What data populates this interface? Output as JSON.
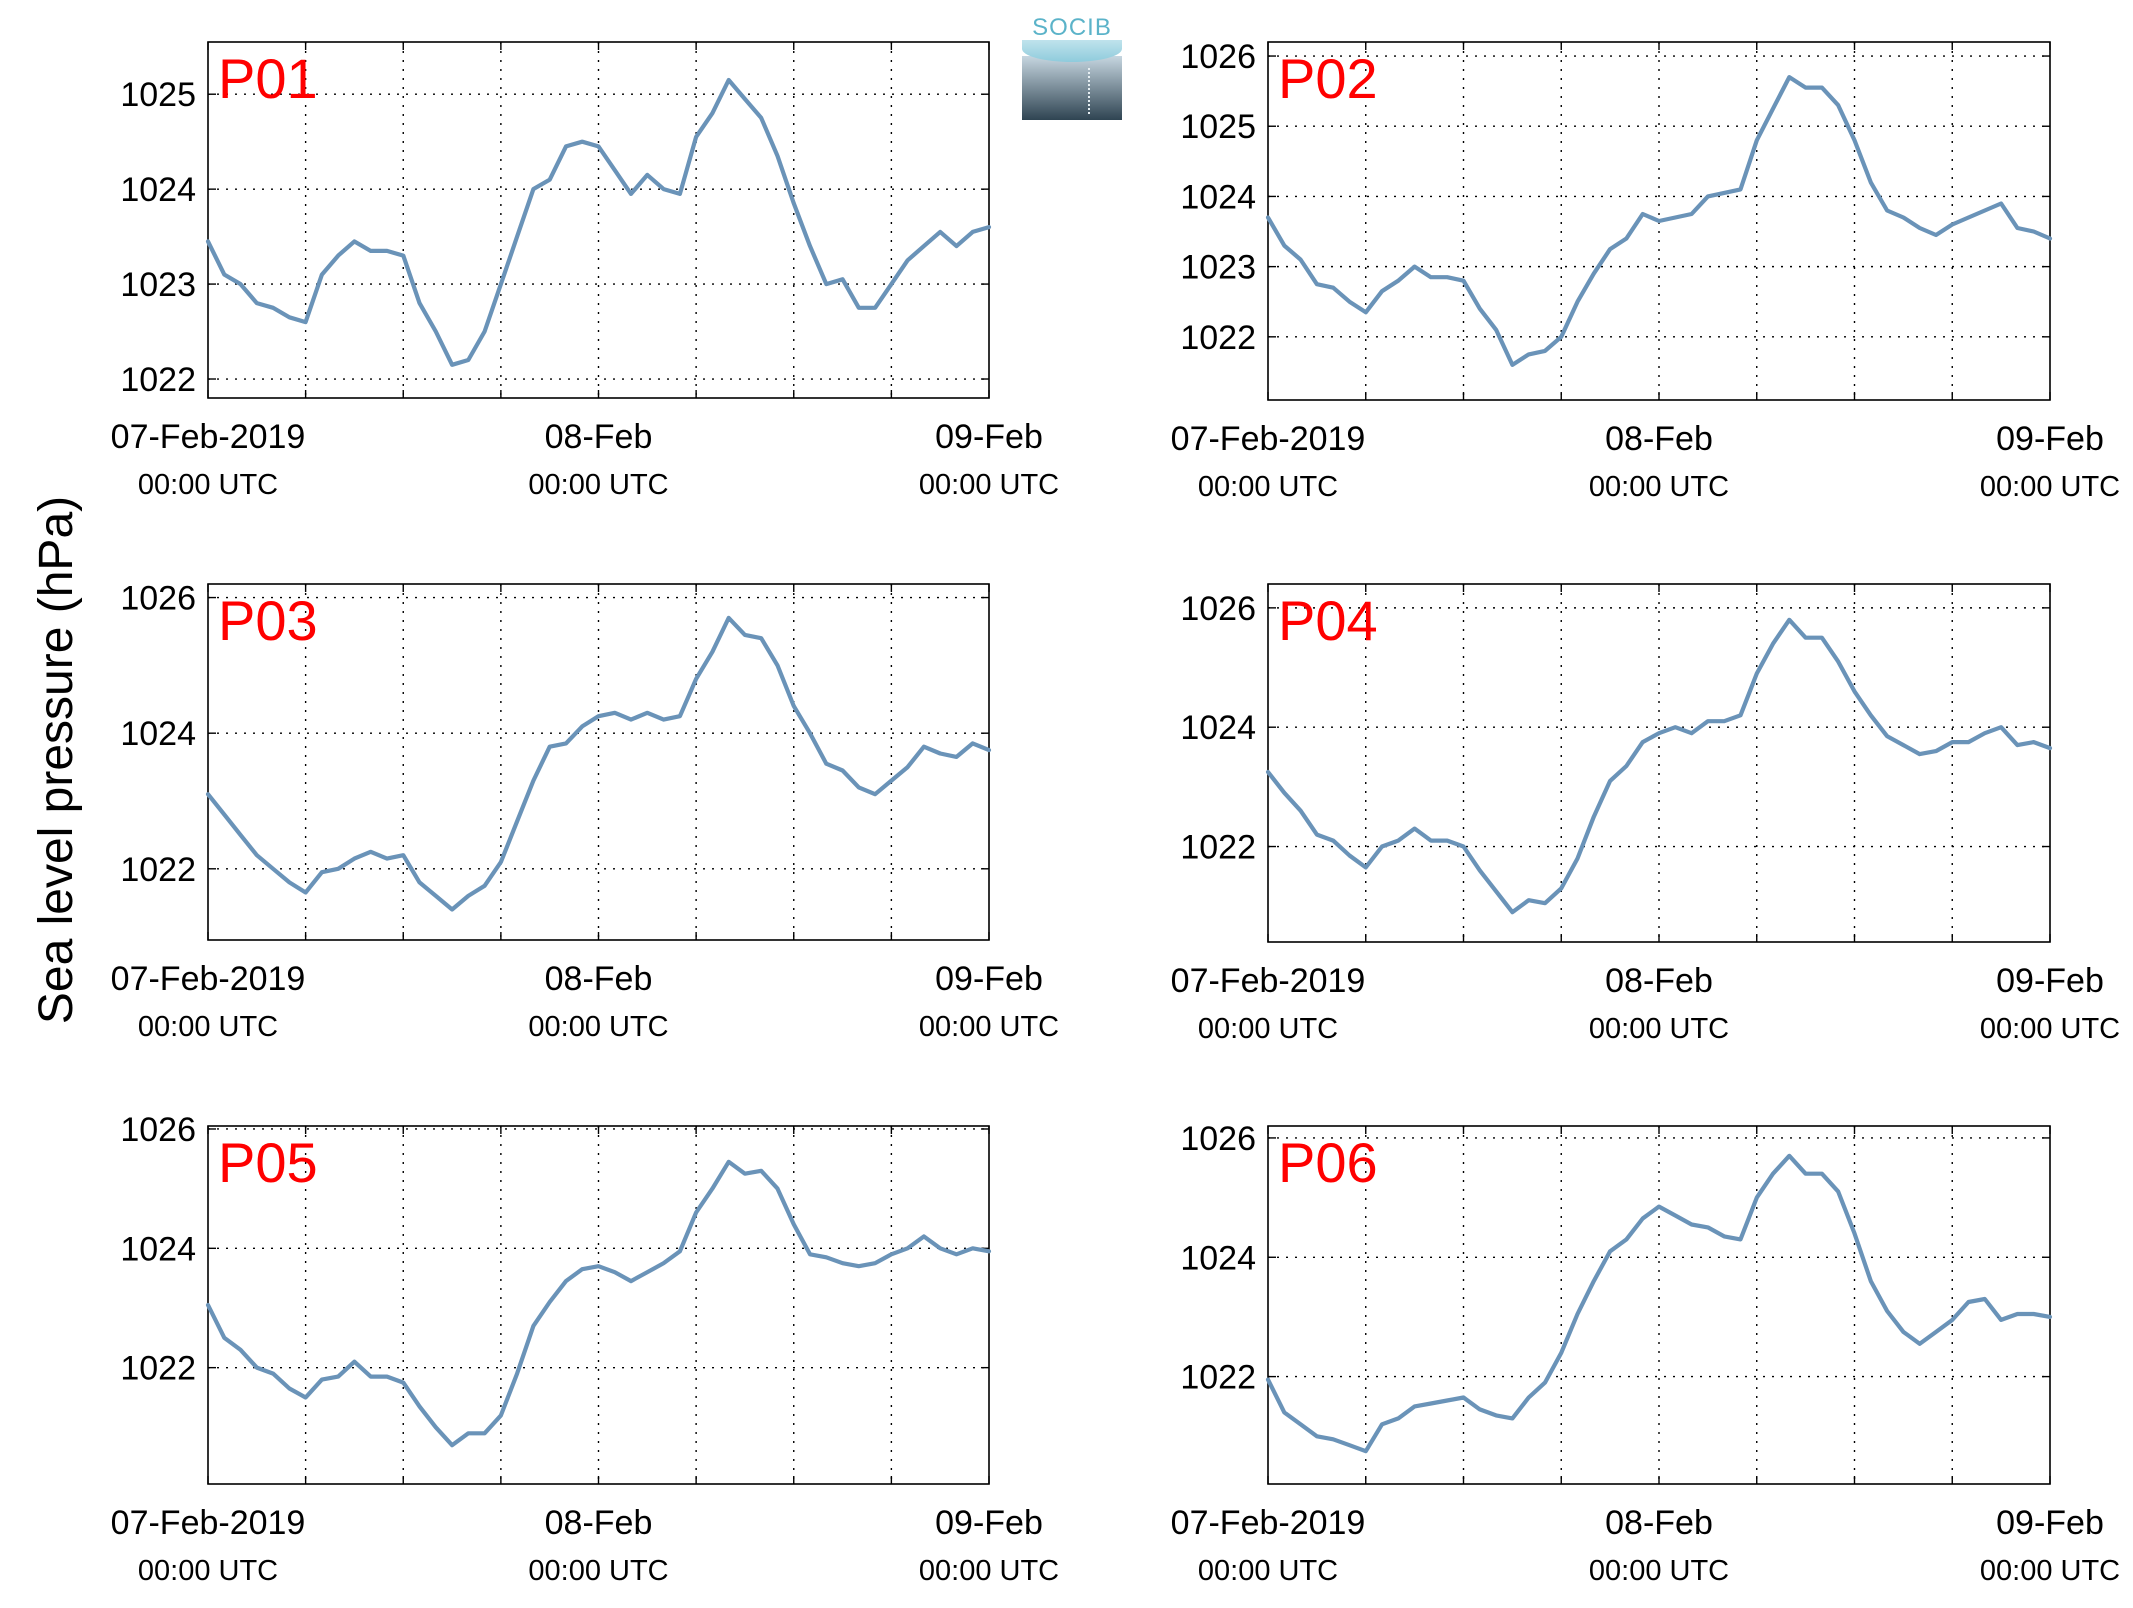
{
  "figure": {
    "ylabel": "Sea level pressure (hPa)",
    "logo_text": "SOCIB",
    "line_color": "#6a93b8",
    "label_color": "#ff0000"
  },
  "chart_data": [
    {
      "type": "line",
      "name": "P01",
      "x_ticks": [
        {
          "main": "07-Feb-2019",
          "sub": "00:00 UTC"
        },
        {
          "main": "08-Feb",
          "sub": "00:00 UTC"
        },
        {
          "main": "09-Feb",
          "sub": "00:00 UTC"
        }
      ],
      "xlim": [
        0,
        48
      ],
      "ylim": [
        1021.8,
        1025.55
      ],
      "yticks": [
        1022,
        1023,
        1024,
        1025
      ],
      "grid": true,
      "x": [
        0,
        1,
        2,
        3,
        4,
        5,
        6,
        7,
        8,
        9,
        10,
        11,
        12,
        13,
        14,
        15,
        16,
        17,
        18,
        19,
        20,
        21,
        22,
        23,
        24,
        25,
        26,
        27,
        28,
        29,
        30,
        31,
        32,
        33,
        34,
        35,
        36,
        37,
        38,
        39,
        40,
        41,
        42,
        43,
        44,
        45,
        46,
        47,
        48
      ],
      "y": [
        1023.45,
        1023.1,
        1023.0,
        1022.8,
        1022.75,
        1022.65,
        1022.6,
        1023.1,
        1023.3,
        1023.45,
        1023.35,
        1023.35,
        1023.3,
        1022.8,
        1022.5,
        1022.15,
        1022.2,
        1022.5,
        1023.0,
        1023.5,
        1024.0,
        1024.1,
        1024.45,
        1024.5,
        1024.45,
        1024.2,
        1023.95,
        1024.15,
        1024.0,
        1023.95,
        1024.55,
        1024.8,
        1025.15,
        1024.95,
        1024.75,
        1024.35,
        1023.85,
        1023.4,
        1023.0,
        1023.05,
        1022.75,
        1022.75,
        1023.0,
        1023.25,
        1023.4,
        1023.55,
        1023.4,
        1023.55,
        1023.6
      ]
    },
    {
      "type": "line",
      "name": "P02",
      "x_ticks": [
        {
          "main": "07-Feb-2019",
          "sub": "00:00 UTC"
        },
        {
          "main": "08-Feb",
          "sub": "00:00 UTC"
        },
        {
          "main": "09-Feb",
          "sub": "00:00 UTC"
        }
      ],
      "xlim": [
        0,
        48
      ],
      "ylim": [
        1021.1,
        1026.2
      ],
      "yticks": [
        1022,
        1023,
        1024,
        1025,
        1026
      ],
      "grid": true,
      "x": [
        0,
        1,
        2,
        3,
        4,
        5,
        6,
        7,
        8,
        9,
        10,
        11,
        12,
        13,
        14,
        15,
        16,
        17,
        18,
        19,
        20,
        21,
        22,
        23,
        24,
        25,
        26,
        27,
        28,
        29,
        30,
        31,
        32,
        33,
        34,
        35,
        36,
        37,
        38,
        39,
        40,
        41,
        42,
        43,
        44,
        45,
        46,
        47,
        48
      ],
      "y": [
        1023.7,
        1023.3,
        1023.1,
        1022.75,
        1022.7,
        1022.5,
        1022.35,
        1022.65,
        1022.8,
        1023.0,
        1022.85,
        1022.85,
        1022.8,
        1022.4,
        1022.1,
        1021.6,
        1021.75,
        1021.8,
        1022.0,
        1022.5,
        1022.9,
        1023.25,
        1023.4,
        1023.75,
        1023.65,
        1023.7,
        1023.75,
        1024.0,
        1024.05,
        1024.1,
        1024.8,
        1025.25,
        1025.7,
        1025.55,
        1025.55,
        1025.3,
        1024.8,
        1024.2,
        1023.8,
        1023.7,
        1023.55,
        1023.45,
        1023.6,
        1023.7,
        1023.8,
        1023.9,
        1023.55,
        1023.5,
        1023.4
      ]
    },
    {
      "type": "line",
      "name": "P03",
      "x_ticks": [
        {
          "main": "07-Feb-2019",
          "sub": "00:00 UTC"
        },
        {
          "main": "08-Feb",
          "sub": "00:00 UTC"
        },
        {
          "main": "09-Feb",
          "sub": "00:00 UTC"
        }
      ],
      "xlim": [
        0,
        48
      ],
      "ylim": [
        1020.95,
        1026.2
      ],
      "yticks": [
        1022,
        1024,
        1026
      ],
      "grid": true,
      "x": [
        0,
        1,
        2,
        3,
        4,
        5,
        6,
        7,
        8,
        9,
        10,
        11,
        12,
        13,
        14,
        15,
        16,
        17,
        18,
        19,
        20,
        21,
        22,
        23,
        24,
        25,
        26,
        27,
        28,
        29,
        30,
        31,
        32,
        33,
        34,
        35,
        36,
        37,
        38,
        39,
        40,
        41,
        42,
        43,
        44,
        45,
        46,
        47,
        48
      ],
      "y": [
        1023.1,
        1022.8,
        1022.5,
        1022.2,
        1022.0,
        1021.8,
        1021.65,
        1021.95,
        1022.0,
        1022.15,
        1022.25,
        1022.15,
        1022.2,
        1021.8,
        1021.6,
        1021.4,
        1021.6,
        1021.75,
        1022.1,
        1022.7,
        1023.3,
        1023.8,
        1023.85,
        1024.1,
        1024.25,
        1024.3,
        1024.2,
        1024.3,
        1024.2,
        1024.25,
        1024.8,
        1025.2,
        1025.7,
        1025.45,
        1025.4,
        1025.0,
        1024.4,
        1024.0,
        1023.55,
        1023.45,
        1023.2,
        1023.1,
        1023.3,
        1023.5,
        1023.8,
        1023.7,
        1023.65,
        1023.85,
        1023.75
      ]
    },
    {
      "type": "line",
      "name": "P04",
      "x_ticks": [
        {
          "main": "07-Feb-2019",
          "sub": "00:00 UTC"
        },
        {
          "main": "08-Feb",
          "sub": "00:00 UTC"
        },
        {
          "main": "09-Feb",
          "sub": "00:00 UTC"
        }
      ],
      "xlim": [
        0,
        48
      ],
      "ylim": [
        1020.4,
        1026.4
      ],
      "yticks": [
        1022,
        1024,
        1026
      ],
      "grid": true,
      "x": [
        0,
        1,
        2,
        3,
        4,
        5,
        6,
        7,
        8,
        9,
        10,
        11,
        12,
        13,
        14,
        15,
        16,
        17,
        18,
        19,
        20,
        21,
        22,
        23,
        24,
        25,
        26,
        27,
        28,
        29,
        30,
        31,
        32,
        33,
        34,
        35,
        36,
        37,
        38,
        39,
        40,
        41,
        42,
        43,
        44,
        45,
        46,
        47,
        48
      ],
      "y": [
        1023.25,
        1022.9,
        1022.6,
        1022.2,
        1022.1,
        1021.85,
        1021.65,
        1022.0,
        1022.1,
        1022.3,
        1022.1,
        1022.1,
        1022.0,
        1021.6,
        1021.25,
        1020.9,
        1021.1,
        1021.05,
        1021.3,
        1021.8,
        1022.5,
        1023.1,
        1023.35,
        1023.75,
        1023.9,
        1024.0,
        1023.9,
        1024.1,
        1024.1,
        1024.2,
        1024.9,
        1025.4,
        1025.8,
        1025.5,
        1025.5,
        1025.1,
        1024.6,
        1024.2,
        1023.85,
        1023.7,
        1023.55,
        1023.6,
        1023.75,
        1023.75,
        1023.9,
        1024.0,
        1023.7,
        1023.75,
        1023.65
      ]
    },
    {
      "type": "line",
      "name": "P05",
      "x_ticks": [
        {
          "main": "07-Feb-2019",
          "sub": "00:00 UTC"
        },
        {
          "main": "08-Feb",
          "sub": "00:00 UTC"
        },
        {
          "main": "09-Feb",
          "sub": "00:00 UTC"
        }
      ],
      "xlim": [
        0,
        48
      ],
      "ylim": [
        1020.05,
        1026.05
      ],
      "yticks": [
        1022,
        1024,
        1026
      ],
      "grid": true,
      "x": [
        0,
        1,
        2,
        3,
        4,
        5,
        6,
        7,
        8,
        9,
        10,
        11,
        12,
        13,
        14,
        15,
        16,
        17,
        18,
        19,
        20,
        21,
        22,
        23,
        24,
        25,
        26,
        27,
        28,
        29,
        30,
        31,
        32,
        33,
        34,
        35,
        36,
        37,
        38,
        39,
        40,
        41,
        42,
        43,
        44,
        45,
        46,
        47,
        48
      ],
      "y": [
        1023.05,
        1022.5,
        1022.3,
        1022.0,
        1021.9,
        1021.65,
        1021.5,
        1021.8,
        1021.85,
        1022.1,
        1021.85,
        1021.85,
        1021.75,
        1021.35,
        1021.0,
        1020.7,
        1020.9,
        1020.9,
        1021.2,
        1021.9,
        1022.7,
        1023.1,
        1023.45,
        1023.65,
        1023.7,
        1023.6,
        1023.45,
        1023.6,
        1023.75,
        1023.95,
        1024.6,
        1025.0,
        1025.45,
        1025.25,
        1025.3,
        1025.0,
        1024.4,
        1023.9,
        1023.85,
        1023.75,
        1023.7,
        1023.75,
        1023.9,
        1024.0,
        1024.2,
        1024.0,
        1023.9,
        1024.0,
        1023.95
      ]
    },
    {
      "type": "line",
      "name": "P06",
      "x_ticks": [
        {
          "main": "07-Feb-2019",
          "sub": "00:00 UTC"
        },
        {
          "main": "08-Feb",
          "sub": "00:00 UTC"
        },
        {
          "main": "09-Feb",
          "sub": "00:00 UTC"
        }
      ],
      "xlim": [
        0,
        48
      ],
      "ylim": [
        1020.2,
        1026.2
      ],
      "yticks": [
        1022,
        1024,
        1026
      ],
      "grid": true,
      "x": [
        0,
        1,
        2,
        3,
        4,
        5,
        6,
        7,
        8,
        9,
        10,
        11,
        12,
        13,
        14,
        15,
        16,
        17,
        18,
        19,
        20,
        21,
        22,
        23,
        24,
        25,
        26,
        27,
        28,
        29,
        30,
        31,
        32,
        33,
        34,
        35,
        36,
        37,
        38,
        39,
        40,
        41,
        42,
        43,
        44,
        45,
        46,
        47,
        48
      ],
      "y": [
        1021.95,
        1021.4,
        1021.2,
        1021.0,
        1020.95,
        1020.85,
        1020.75,
        1021.2,
        1021.3,
        1021.5,
        1021.55,
        1021.6,
        1021.65,
        1021.45,
        1021.35,
        1021.3,
        1021.65,
        1021.9,
        1022.4,
        1023.05,
        1023.6,
        1024.1,
        1024.3,
        1024.65,
        1024.85,
        1024.7,
        1024.55,
        1024.5,
        1024.35,
        1024.3,
        1025.0,
        1025.4,
        1025.7,
        1025.4,
        1025.4,
        1025.1,
        1024.4,
        1023.6,
        1023.1,
        1022.75,
        1022.55,
        1022.75,
        1022.95,
        1023.25,
        1023.3,
        1022.95,
        1023.05,
        1023.05,
        1023.0
      ]
    }
  ]
}
